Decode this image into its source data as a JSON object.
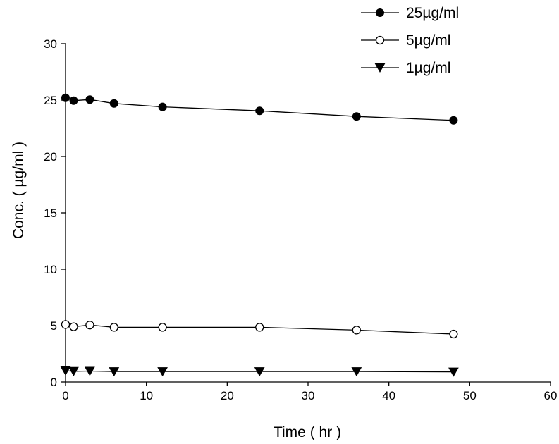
{
  "chart_data": {
    "type": "line",
    "title": "",
    "xlabel": "Time ( hr )",
    "ylabel": "Conc. ( µg/ml )",
    "xlim": [
      0,
      60
    ],
    "ylim": [
      0,
      30
    ],
    "xticks": [
      0,
      10,
      20,
      30,
      40,
      50,
      60
    ],
    "yticks": [
      0,
      5,
      10,
      15,
      20,
      25,
      30
    ],
    "x_tick_labels": [
      "0",
      "10",
      "20",
      "30",
      "40",
      "50",
      "60"
    ],
    "y_tick_labels": [
      "0",
      "5",
      "10",
      "15",
      "20",
      "25",
      "30"
    ],
    "grid": false,
    "legend_position": "top-right",
    "line_color": "#000000",
    "series": [
      {
        "name": "25µg/ml",
        "marker": "filled-circle",
        "x": [
          0,
          1,
          3,
          6,
          12,
          24,
          36,
          48
        ],
        "y": [
          25.2,
          24.95,
          25.05,
          24.7,
          24.4,
          24.05,
          23.55,
          23.2
        ]
      },
      {
        "name": "5µg/ml",
        "marker": "open-circle",
        "x": [
          0,
          1,
          3,
          6,
          12,
          24,
          36,
          48
        ],
        "y": [
          5.1,
          4.9,
          5.05,
          4.85,
          4.85,
          4.85,
          4.6,
          4.25
        ]
      },
      {
        "name": "1µg/ml",
        "marker": "filled-triangle-down",
        "x": [
          0,
          1,
          3,
          6,
          12,
          24,
          36,
          48
        ],
        "y": [
          1.0,
          0.95,
          0.97,
          0.93,
          0.93,
          0.93,
          0.93,
          0.9
        ]
      }
    ]
  }
}
